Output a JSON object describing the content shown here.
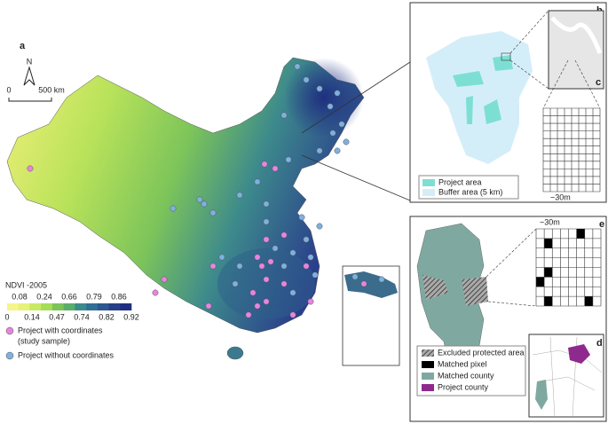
{
  "panel_a": {
    "label": "a",
    "north": "N",
    "scale_start": 0,
    "scale_end": "500 km",
    "colorbar": {
      "title": "NDVI -2005",
      "ticks_top": [
        0.08,
        0.24,
        0.66,
        0.79,
        0.86
      ],
      "ticks_bottom": [
        0,
        0.14,
        0.47,
        0.74,
        0.82,
        0.92
      ]
    },
    "legend": [
      {
        "lines": [
          "Project with coordinates",
          "(study sample)"
        ]
      },
      {
        "lines": [
          "Project without coordinates"
        ]
      }
    ]
  },
  "panel_b": {
    "label": "b",
    "inset_label": "c",
    "grid_size": "~30m",
    "legend": [
      "Project area",
      "Buffer area (5 km)"
    ]
  },
  "panel_e": {
    "label": "e",
    "inset_label": "d",
    "grid_size": "~30m",
    "legend": [
      "Excluded protected area",
      "Matched pixel",
      "Matched county",
      "Project county"
    ]
  }
}
